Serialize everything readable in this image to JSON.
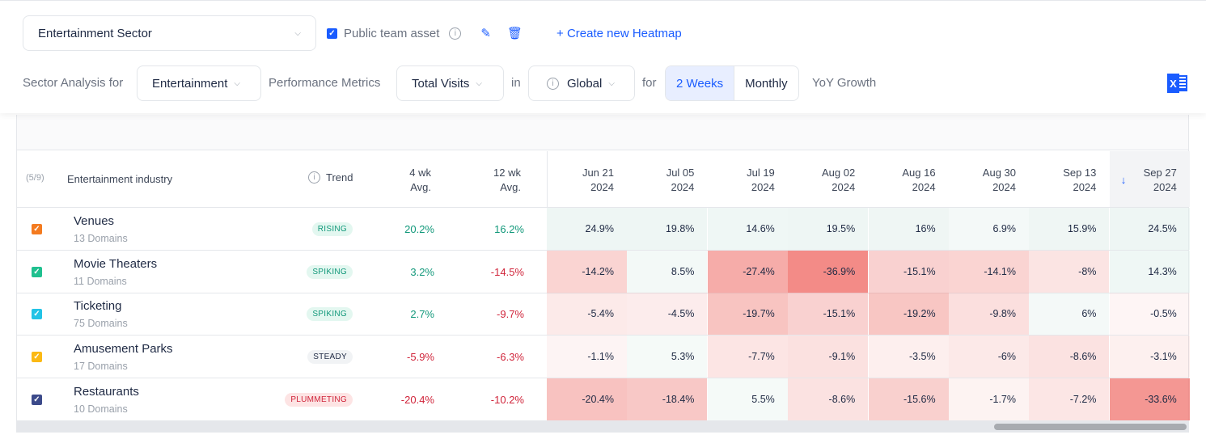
{
  "toolbar": {
    "heatmap_name": "Entertainment Sector",
    "public_label": "Public team asset",
    "create_label": "+ Create new Heatmap",
    "sector_label": "Sector Analysis for",
    "sector_value": "Entertainment",
    "metrics_label": "Performance Metrics",
    "metrics_value": "Total Visits",
    "in_label": "in",
    "region_value": "Global",
    "for_label": "for",
    "periods": [
      "2 Weeks",
      "Monthly"
    ],
    "active_period": "2 Weeks",
    "growth_label": "YoY Growth",
    "export_icon": "excel-icon"
  },
  "table": {
    "count": "(5/9)",
    "industry_header": "Entertainment industry",
    "trend_header": "Trend",
    "avg4_header": [
      "4 wk",
      "Avg."
    ],
    "avg12_header": [
      "12 wk",
      "Avg."
    ],
    "dates": [
      [
        "Jun 21",
        "2024"
      ],
      [
        "Jul 05",
        "2024"
      ],
      [
        "Jul 19",
        "2024"
      ],
      [
        "Aug 02",
        "2024"
      ],
      [
        "Aug 16",
        "2024"
      ],
      [
        "Aug 30",
        "2024"
      ],
      [
        "Sep 13",
        "2024"
      ],
      [
        "Sep 27",
        "2024"
      ]
    ],
    "sorted_column": "Sep 27 2024",
    "rows": [
      {
        "name": "Venues",
        "domains": "13 Domains",
        "color": "#f47b20",
        "trend": "RISING",
        "avg4": "20.2%",
        "avg12": "16.2%",
        "values": [
          "24.9%",
          "19.8%",
          "14.6%",
          "19.5%",
          "16%",
          "6.9%",
          "15.9%",
          "24.5%"
        ]
      },
      {
        "name": "Movie Theaters",
        "domains": "11 Domains",
        "color": "#1fc08f",
        "trend": "SPIKING",
        "avg4": "3.2%",
        "avg12": "-14.5%",
        "values": [
          "-14.2%",
          "8.5%",
          "-27.4%",
          "-36.9%",
          "-15.1%",
          "-14.1%",
          "-8%",
          "14.3%"
        ]
      },
      {
        "name": "Ticketing",
        "domains": "75 Domains",
        "color": "#22c3e6",
        "trend": "SPIKING",
        "avg4": "2.7%",
        "avg12": "-9.7%",
        "values": [
          "-5.4%",
          "-4.5%",
          "-19.7%",
          "-15.1%",
          "-19.2%",
          "-9.8%",
          "6%",
          "-0.5%"
        ]
      },
      {
        "name": "Amusement Parks",
        "domains": "17 Domains",
        "color": "#fbb914",
        "trend": "STEADY",
        "avg4": "-5.9%",
        "avg12": "-6.3%",
        "values": [
          "-1.1%",
          "5.3%",
          "-7.7%",
          "-9.1%",
          "-3.5%",
          "-6%",
          "-8.6%",
          "-3.1%"
        ]
      },
      {
        "name": "Restaurants",
        "domains": "10 Domains",
        "color": "#3c4a8a",
        "trend": "PLUMMETING",
        "avg4": "-20.4%",
        "avg12": "-10.2%",
        "values": [
          "-20.4%",
          "-18.4%",
          "5.5%",
          "-8.6%",
          "-15.6%",
          "-1.7%",
          "-7.2%",
          "-33.6%"
        ]
      }
    ]
  }
}
